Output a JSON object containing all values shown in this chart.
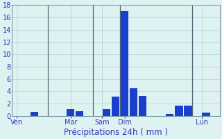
{
  "bar_values": [
    0,
    0,
    0.6,
    0,
    0,
    0,
    1.1,
    0.7,
    0,
    0,
    1.1,
    3.1,
    17.0,
    4.5,
    3.2,
    0,
    0,
    0.3,
    1.7,
    1.6,
    0,
    0.5,
    0
  ],
  "n_bars": 23,
  "bar_color": "#1a3fcc",
  "bg_color": "#dff2f2",
  "grid_color": "#b0d8d8",
  "grid_color_minor": "#c8e8e8",
  "xlabel": "Précipitations 24h ( mm )",
  "ylim": [
    0,
    18
  ],
  "yticks": [
    0,
    2,
    4,
    6,
    8,
    10,
    12,
    14,
    16,
    18
  ],
  "day_labels": [
    "Ven",
    "Mar",
    "Sam",
    "Dim",
    "Lun"
  ],
  "day_positions": [
    0.0,
    6.0,
    9.5,
    12.0,
    20.5
  ],
  "vline_positions": [
    3.5,
    8.5,
    11.5,
    19.5
  ],
  "xlabel_fontsize": 8.5,
  "tick_fontsize": 7,
  "tick_color": "#3333bb",
  "spine_color": "#7799aa"
}
